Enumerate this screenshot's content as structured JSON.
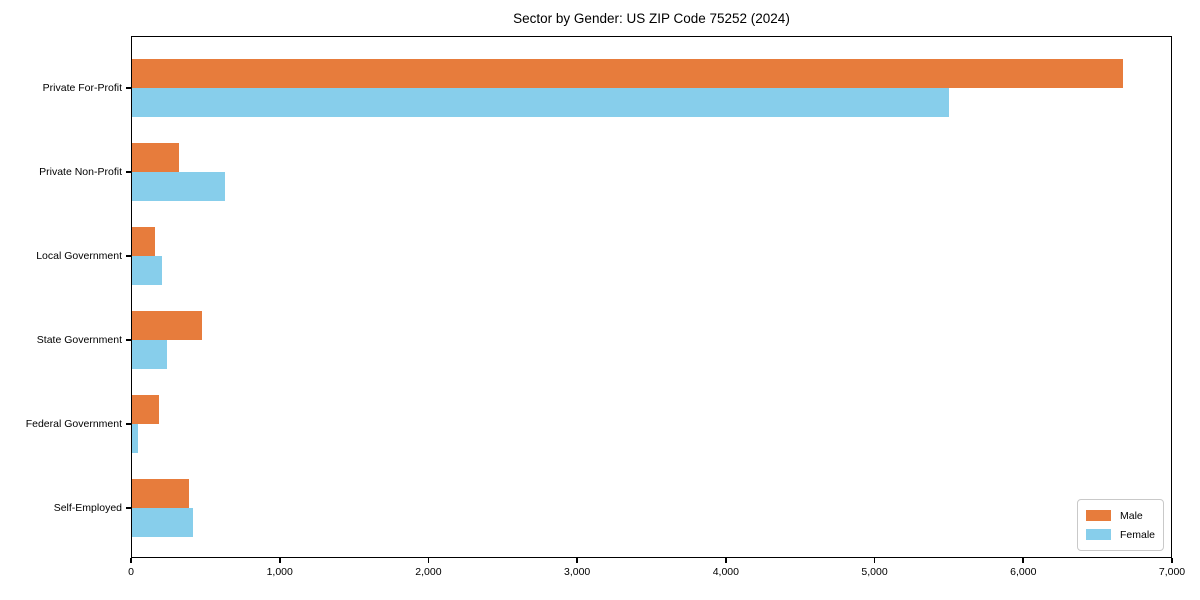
{
  "chart_data": {
    "type": "bar",
    "orientation": "horizontal",
    "title": "Sector by Gender: US ZIP Code 75252 (2024)",
    "xlabel": "",
    "ylabel": "",
    "categories": [
      "Private For-Profit",
      "Private Non-Profit",
      "Local Government",
      "State Government",
      "Federal Government",
      "Self-Employed"
    ],
    "category_order": "top-to-bottom",
    "series": [
      {
        "name": "Male",
        "color": "#e77c3c",
        "values": [
          6670,
          325,
          160,
          480,
          190,
          390
        ]
      },
      {
        "name": "Female",
        "color": "#87ceeb",
        "values": [
          5500,
          630,
          210,
          245,
          50,
          415
        ]
      }
    ],
    "xlim": [
      0,
      7000
    ],
    "xticks": [
      0,
      1000,
      2000,
      3000,
      4000,
      5000,
      6000,
      7000
    ],
    "xtick_labels": [
      "0",
      "1,000",
      "2,000",
      "3,000",
      "4,000",
      "5,000",
      "6,000",
      "7,000"
    ],
    "grid": false,
    "legend_position": "lower right",
    "frame": true,
    "axis_color": "#000000",
    "background_color": "#ffffff"
  }
}
